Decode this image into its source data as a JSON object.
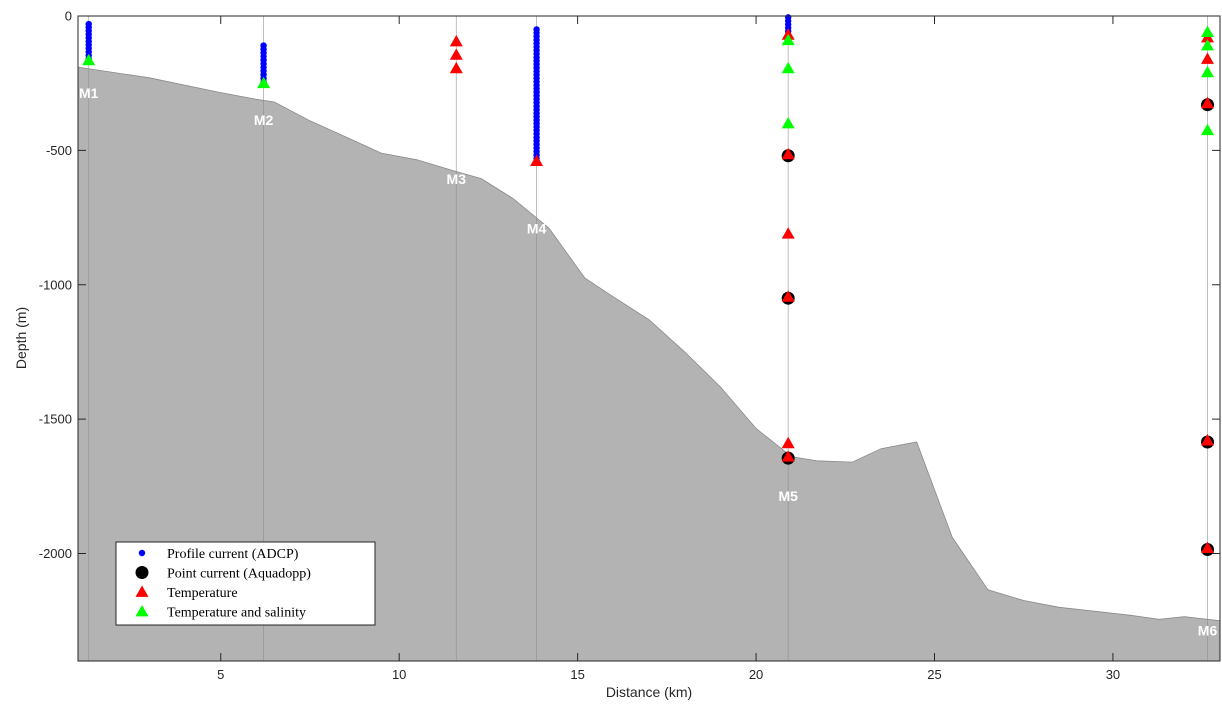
{
  "chart_data": {
    "type": "scatter",
    "title": "",
    "xlabel": "Distance (km)",
    "ylabel": "Depth (m)",
    "xlim": [
      1,
      33
    ],
    "ylim": [
      -2400,
      0
    ],
    "xticks": [
      5,
      10,
      15,
      20,
      25,
      30
    ],
    "yticks": [
      0,
      -500,
      -1000,
      -1500,
      -2000
    ],
    "grid": false,
    "legend_position": "lower-left",
    "colors": {
      "bathymetry": "#b3b3b3",
      "profile_current": "#0000ff",
      "point_current": "#000000",
      "temperature": "#ff0000",
      "temperature_salinity": "#00ff00"
    },
    "bathymetry": {
      "x": [
        1,
        3,
        5,
        6,
        6.5,
        7.5,
        8.5,
        9.5,
        10.5,
        11.5,
        12.3,
        13.2,
        14.2,
        15.2,
        16,
        17,
        18,
        19,
        20,
        21,
        21.7,
        22.7,
        23.5,
        24.5,
        25.5,
        26.5,
        27.5,
        28.5,
        29.5,
        30.5,
        31.3,
        32,
        33
      ],
      "y": [
        -190,
        -230,
        -285,
        -310,
        -320,
        -390,
        -450,
        -510,
        -535,
        -575,
        -605,
        -680,
        -790,
        -975,
        -1045,
        -1130,
        -1250,
        -1380,
        -1535,
        -1640,
        -1655,
        -1660,
        -1610,
        -1585,
        -1940,
        -2135,
        -2175,
        -2200,
        -2215,
        -2230,
        -2245,
        -2235,
        -2250
      ]
    },
    "moorings": [
      {
        "name": "M1",
        "x": 1.3,
        "label_depth": -305
      },
      {
        "name": "M2",
        "x": 6.2,
        "label_depth": -405
      },
      {
        "name": "M3",
        "x": 11.6,
        "label_depth": -625
      },
      {
        "name": "M4",
        "x": 13.85,
        "label_depth": -810
      },
      {
        "name": "M5",
        "x": 20.9,
        "label_depth": -1805
      },
      {
        "name": "M6",
        "x": 32.65,
        "label_depth": -2305
      }
    ],
    "series": [
      {
        "name": "Profile current (ADCP)",
        "marker": "dot",
        "segments": [
          {
            "x": 1.3,
            "y_top": -30,
            "y_bottom": -160
          },
          {
            "x": 6.2,
            "y_top": -110,
            "y_bottom": -245
          },
          {
            "x": 13.85,
            "y_top": -50,
            "y_bottom": -530
          },
          {
            "x": 20.9,
            "y_top": -5,
            "y_bottom": -70
          }
        ]
      },
      {
        "name": "Point current (Aquadopp)",
        "marker": "circle",
        "points": [
          {
            "x": 20.9,
            "y": -520
          },
          {
            "x": 20.9,
            "y": -1050
          },
          {
            "x": 20.9,
            "y": -1645
          },
          {
            "x": 32.65,
            "y": -330
          },
          {
            "x": 32.65,
            "y": -1585
          },
          {
            "x": 32.65,
            "y": -1985
          }
        ]
      },
      {
        "name": "Temperature",
        "marker": "triangle",
        "points": [
          {
            "x": 11.6,
            "y": -95
          },
          {
            "x": 11.6,
            "y": -145
          },
          {
            "x": 11.6,
            "y": -195
          },
          {
            "x": 13.85,
            "y": -540
          },
          {
            "x": 20.9,
            "y": -70
          },
          {
            "x": 20.9,
            "y": -515
          },
          {
            "x": 20.9,
            "y": -810
          },
          {
            "x": 20.9,
            "y": -1045
          },
          {
            "x": 20.9,
            "y": -1590
          },
          {
            "x": 20.9,
            "y": -1640
          },
          {
            "x": 32.65,
            "y": -80
          },
          {
            "x": 32.65,
            "y": -160
          },
          {
            "x": 32.65,
            "y": -325
          },
          {
            "x": 32.65,
            "y": -1580
          },
          {
            "x": 32.65,
            "y": -1980
          }
        ]
      },
      {
        "name": "Temperature and salinity",
        "marker": "triangle",
        "points": [
          {
            "x": 1.3,
            "y": -165
          },
          {
            "x": 6.2,
            "y": -250
          },
          {
            "x": 20.9,
            "y": -90
          },
          {
            "x": 20.9,
            "y": -195
          },
          {
            "x": 20.9,
            "y": -400
          },
          {
            "x": 32.65,
            "y": -60
          },
          {
            "x": 32.65,
            "y": -110
          },
          {
            "x": 32.65,
            "y": -210
          },
          {
            "x": 32.65,
            "y": -425
          }
        ]
      }
    ]
  }
}
